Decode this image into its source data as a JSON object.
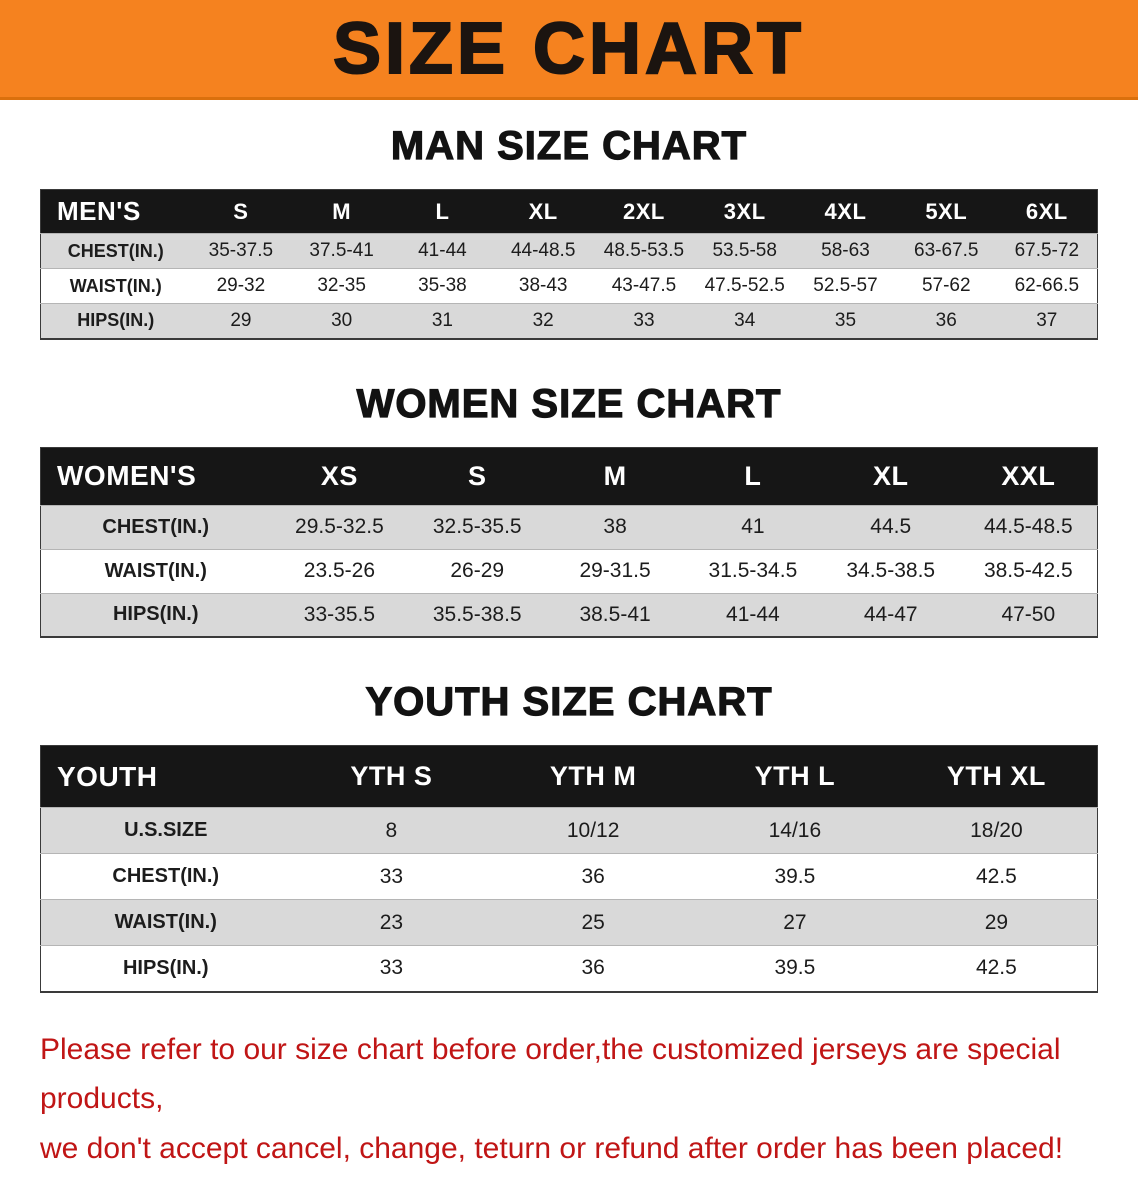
{
  "banner": {
    "title": "SIZE CHART"
  },
  "sections": [
    {
      "id": "men",
      "heading": "MAN SIZE CHART",
      "table": {
        "header": [
          "MEN'S",
          "S",
          "M",
          "L",
          "XL",
          "2XL",
          "3XL",
          "4XL",
          "5XL",
          "6XL"
        ],
        "rows": [
          [
            "CHEST(IN.)",
            "35-37.5",
            "37.5-41",
            "41-44",
            "44-48.5",
            "48.5-53.5",
            "53.5-58",
            "58-63",
            "63-67.5",
            "67.5-72"
          ],
          [
            "WAIST(IN.)",
            "29-32",
            "32-35",
            "35-38",
            "38-43",
            "43-47.5",
            "47.5-52.5",
            "52.5-57",
            "57-62",
            "62-66.5"
          ],
          [
            "HIPS(IN.)",
            "29",
            "30",
            "31",
            "32",
            "33",
            "34",
            "35",
            "36",
            "37"
          ]
        ]
      }
    },
    {
      "id": "women",
      "heading": "WOMEN SIZE CHART",
      "table": {
        "header": [
          "WOMEN'S",
          "XS",
          "S",
          "M",
          "L",
          "XL",
          "XXL"
        ],
        "rows": [
          [
            "CHEST(IN.)",
            "29.5-32.5",
            "32.5-35.5",
            "38",
            "41",
            "44.5",
            "44.5-48.5"
          ],
          [
            "WAIST(IN.)",
            "23.5-26",
            "26-29",
            "29-31.5",
            "31.5-34.5",
            "34.5-38.5",
            "38.5-42.5"
          ],
          [
            "HIPS(IN.)",
            "33-35.5",
            "35.5-38.5",
            "38.5-41",
            "41-44",
            "44-47",
            "47-50"
          ]
        ]
      }
    },
    {
      "id": "youth",
      "heading": "YOUTH SIZE CHART",
      "table": {
        "header": [
          "YOUTH",
          "YTH S",
          "YTH M",
          "YTH L",
          "YTH XL"
        ],
        "rows": [
          [
            "U.S.SIZE",
            "8",
            "10/12",
            "14/16",
            "18/20"
          ],
          [
            "CHEST(IN.)",
            "33",
            "36",
            "39.5",
            "42.5"
          ],
          [
            "WAIST(IN.)",
            "23",
            "25",
            "27",
            "29"
          ],
          [
            "HIPS(IN.)",
            "33",
            "36",
            "39.5",
            "42.5"
          ]
        ]
      }
    }
  ],
  "disclaimer": {
    "line1": "Please refer to our size chart before order,the customized jerseys are special products,",
    "line2": "we don't accept cancel, change, teturn or refund after order has been placed!"
  },
  "colors": {
    "banner_orange": "#f5821f",
    "table_header_black": "#161616",
    "row_gray": "#d9d9d9",
    "disclaimer_red": "#c01515"
  }
}
